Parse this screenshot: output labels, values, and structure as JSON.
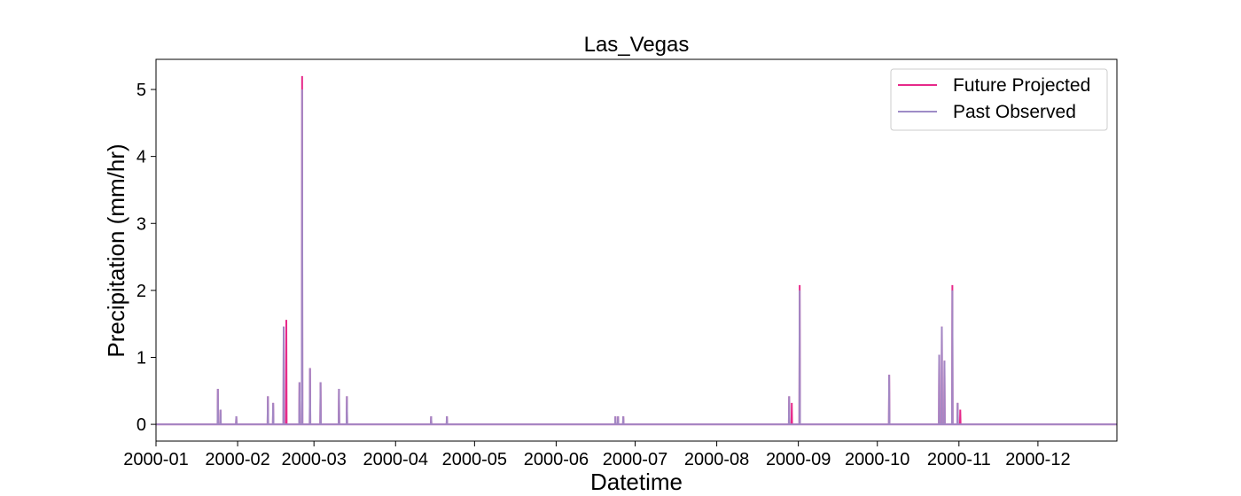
{
  "chart_data": {
    "type": "line",
    "title": "Las_Vegas",
    "xlabel": "Datetime",
    "ylabel": "Precipitation (mm/hr)",
    "xlim": [
      "2000-01-01",
      "2000-12-31"
    ],
    "ylim": [
      -0.25,
      5.45
    ],
    "x_ticks": [
      "2000-01",
      "2000-02",
      "2000-03",
      "2000-04",
      "2000-05",
      "2000-06",
      "2000-07",
      "2000-08",
      "2000-09",
      "2000-10",
      "2000-11",
      "2000-12"
    ],
    "y_ticks": [
      0,
      1,
      2,
      3,
      4,
      5
    ],
    "grid": false,
    "legend": "top-right",
    "series": [
      {
        "name": "Future Projected",
        "color": "#e7298a",
        "points": [
          [
            "2000-01-24",
            0.53
          ],
          [
            "2000-01-25",
            0.22
          ],
          [
            "2000-01-31",
            0.12
          ],
          [
            "2000-02-12",
            0.42
          ],
          [
            "2000-02-14",
            0.32
          ],
          [
            "2000-02-18",
            1.46
          ],
          [
            "2000-02-19",
            1.56
          ],
          [
            "2000-02-24",
            0.63
          ],
          [
            "2000-02-25",
            5.2
          ],
          [
            "2000-02-28",
            0.84
          ],
          [
            "2000-03-03",
            0.63
          ],
          [
            "2000-03-03",
            0.32
          ],
          [
            "2000-03-10",
            0.53
          ],
          [
            "2000-03-13",
            0.42
          ],
          [
            "2000-03-13",
            0.22
          ],
          [
            "2000-04-14",
            0.12
          ],
          [
            "2000-04-20",
            0.12
          ],
          [
            "2000-06-23",
            0.12
          ],
          [
            "2000-06-24",
            0.12
          ],
          [
            "2000-06-26",
            0.12
          ],
          [
            "2000-08-28",
            0.42
          ],
          [
            "2000-08-29",
            0.32
          ],
          [
            "2000-09-01",
            0.95
          ],
          [
            "2000-09-01",
            2.08
          ],
          [
            "2000-10-05",
            0.74
          ],
          [
            "2000-10-24",
            1.04
          ],
          [
            "2000-10-25",
            1.46
          ],
          [
            "2000-10-26",
            0.95
          ],
          [
            "2000-10-29",
            2.08
          ],
          [
            "2000-10-31",
            0.32
          ],
          [
            "2000-11-01",
            0.22
          ]
        ]
      },
      {
        "name": "Past Observed",
        "color": "#9e8cc7",
        "points": [
          [
            "2000-01-24",
            0.53
          ],
          [
            "2000-01-25",
            0.22
          ],
          [
            "2000-01-31",
            0.12
          ],
          [
            "2000-02-12",
            0.42
          ],
          [
            "2000-02-14",
            0.32
          ],
          [
            "2000-02-18",
            1.46
          ],
          [
            "2000-02-24",
            0.63
          ],
          [
            "2000-02-25",
            5.0
          ],
          [
            "2000-02-28",
            0.84
          ],
          [
            "2000-03-03",
            0.63
          ],
          [
            "2000-03-10",
            0.53
          ],
          [
            "2000-03-13",
            0.42
          ],
          [
            "2000-04-14",
            0.12
          ],
          [
            "2000-04-20",
            0.12
          ],
          [
            "2000-06-23",
            0.12
          ],
          [
            "2000-06-24",
            0.12
          ],
          [
            "2000-06-26",
            0.12
          ],
          [
            "2000-08-28",
            0.42
          ],
          [
            "2000-09-01",
            0.95
          ],
          [
            "2000-09-01",
            2.0
          ],
          [
            "2000-10-05",
            0.74
          ],
          [
            "2000-10-24",
            1.04
          ],
          [
            "2000-10-25",
            1.46
          ],
          [
            "2000-10-26",
            0.95
          ],
          [
            "2000-10-29",
            2.0
          ],
          [
            "2000-10-31",
            0.32
          ]
        ]
      }
    ]
  }
}
